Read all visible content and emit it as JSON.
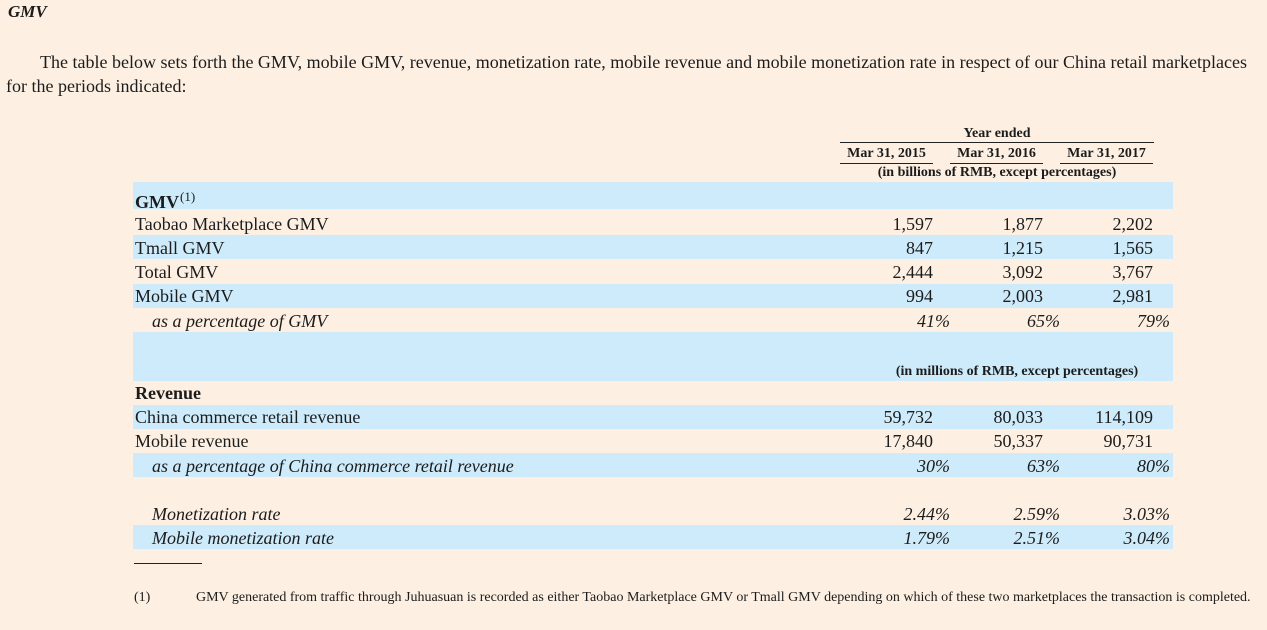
{
  "section_title": "GMV",
  "intro_text": "The table below sets forth the GMV, mobile GMV, revenue, monetization rate, mobile revenue and mobile monetization rate in respect of our China retail marketplaces for the periods indicated:",
  "table": {
    "period_header": "Year ended",
    "columns": [
      "Mar 31, 2015",
      "Mar 31, 2016",
      "Mar 31, 2017"
    ],
    "gmv_units": "(in billions of RMB, except percentages)",
    "revenue_units": "(in millions of RMB, except percentages)",
    "gmv_section": {
      "label": "GMV",
      "footnote_ref": "(1)"
    },
    "gmv_rows": [
      {
        "label": "Taobao Marketplace GMV",
        "values": [
          "1,597",
          "1,877",
          "2,202"
        ]
      },
      {
        "label": "Tmall GMV",
        "values": [
          "847",
          "1,215",
          "1,565"
        ]
      },
      {
        "label": "Total GMV",
        "values": [
          "2,444",
          "3,092",
          "3,767"
        ]
      },
      {
        "label": "Mobile GMV",
        "values": [
          "994",
          "2,003",
          "2,981"
        ]
      },
      {
        "label": "as a percentage of GMV",
        "values": [
          "41%",
          "65%",
          "79%"
        ]
      }
    ],
    "revenue_section": {
      "label": "Revenue"
    },
    "revenue_rows": [
      {
        "label": "China commerce retail revenue",
        "values": [
          "59,732",
          "80,033",
          "114,109"
        ]
      },
      {
        "label": "Mobile revenue",
        "values": [
          "17,840",
          "50,337",
          "90,731"
        ]
      },
      {
        "label": "as a percentage of China commerce retail revenue",
        "values": [
          "30%",
          "63%",
          "80%"
        ]
      }
    ],
    "rate_rows": [
      {
        "label": "Monetization rate",
        "values": [
          "2.44%",
          "2.59%",
          "3.03%"
        ]
      },
      {
        "label": "Mobile monetization rate",
        "values": [
          "1.79%",
          "2.51%",
          "3.04%"
        ]
      }
    ]
  },
  "footnote": {
    "marker": "(1)",
    "text": "GMV generated from traffic through Juhuasuan is recorded as either Taobao Marketplace GMV or Tmall GMV depending on which of these two marketplaces the transaction is completed."
  }
}
